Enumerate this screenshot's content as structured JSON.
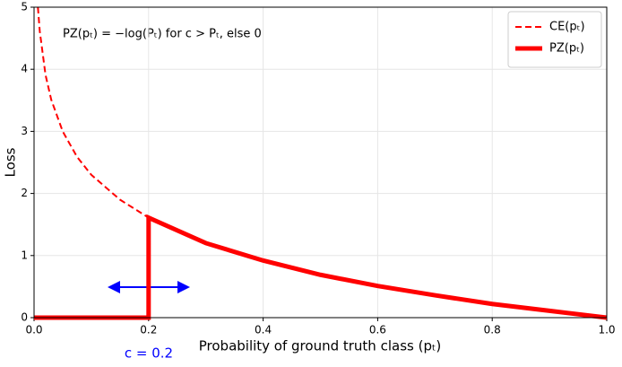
{
  "chart_data": {
    "type": "line",
    "annotation": "PZ(pₜ) = −log(Pₜ) for c > Pₜ, else 0",
    "threshold_label": "c = 0.2",
    "xlabel": "Probability of ground truth class (pₜ)",
    "ylabel": "Loss",
    "x": [
      0,
      0.0067,
      0.01,
      0.02,
      0.03,
      0.05,
      0.075,
      0.1,
      0.15,
      0.2,
      0.2,
      0.3,
      0.4,
      0.5,
      0.6,
      0.7,
      0.8,
      0.9,
      1.0
    ],
    "series": [
      {
        "name": "CE(pₜ)",
        "color": "#ff0000",
        "dashed": true,
        "width": 2,
        "values": [
          null,
          5.0,
          4.61,
          3.91,
          3.51,
          3.0,
          2.59,
          2.3,
          1.9,
          1.61,
          1.61,
          1.2,
          0.92,
          0.69,
          0.51,
          0.36,
          0.22,
          0.11,
          0
        ]
      },
      {
        "name": "PZ(pₜ)",
        "color": "#ff0000",
        "dashed": false,
        "width": 5,
        "values": [
          0,
          0,
          0,
          0,
          0,
          0,
          0,
          0,
          0,
          0,
          1.61,
          1.2,
          0.92,
          0.69,
          0.51,
          0.36,
          0.22,
          0.11,
          0
        ]
      }
    ],
    "xlim": [
      0,
      1
    ],
    "ylim": [
      0,
      5
    ],
    "xticks": [
      {
        "value": 0,
        "label": "0.0"
      },
      {
        "value": 0.2,
        "label": "0.2"
      },
      {
        "value": 0.4,
        "label": "0.4"
      },
      {
        "value": 0.6,
        "label": "0.6"
      },
      {
        "value": 0.8,
        "label": "0.8"
      },
      {
        "value": 1,
        "label": "1.0"
      }
    ],
    "yticks": [
      0,
      1,
      2,
      3,
      4,
      5
    ],
    "grid": true,
    "legend": "upper right"
  }
}
